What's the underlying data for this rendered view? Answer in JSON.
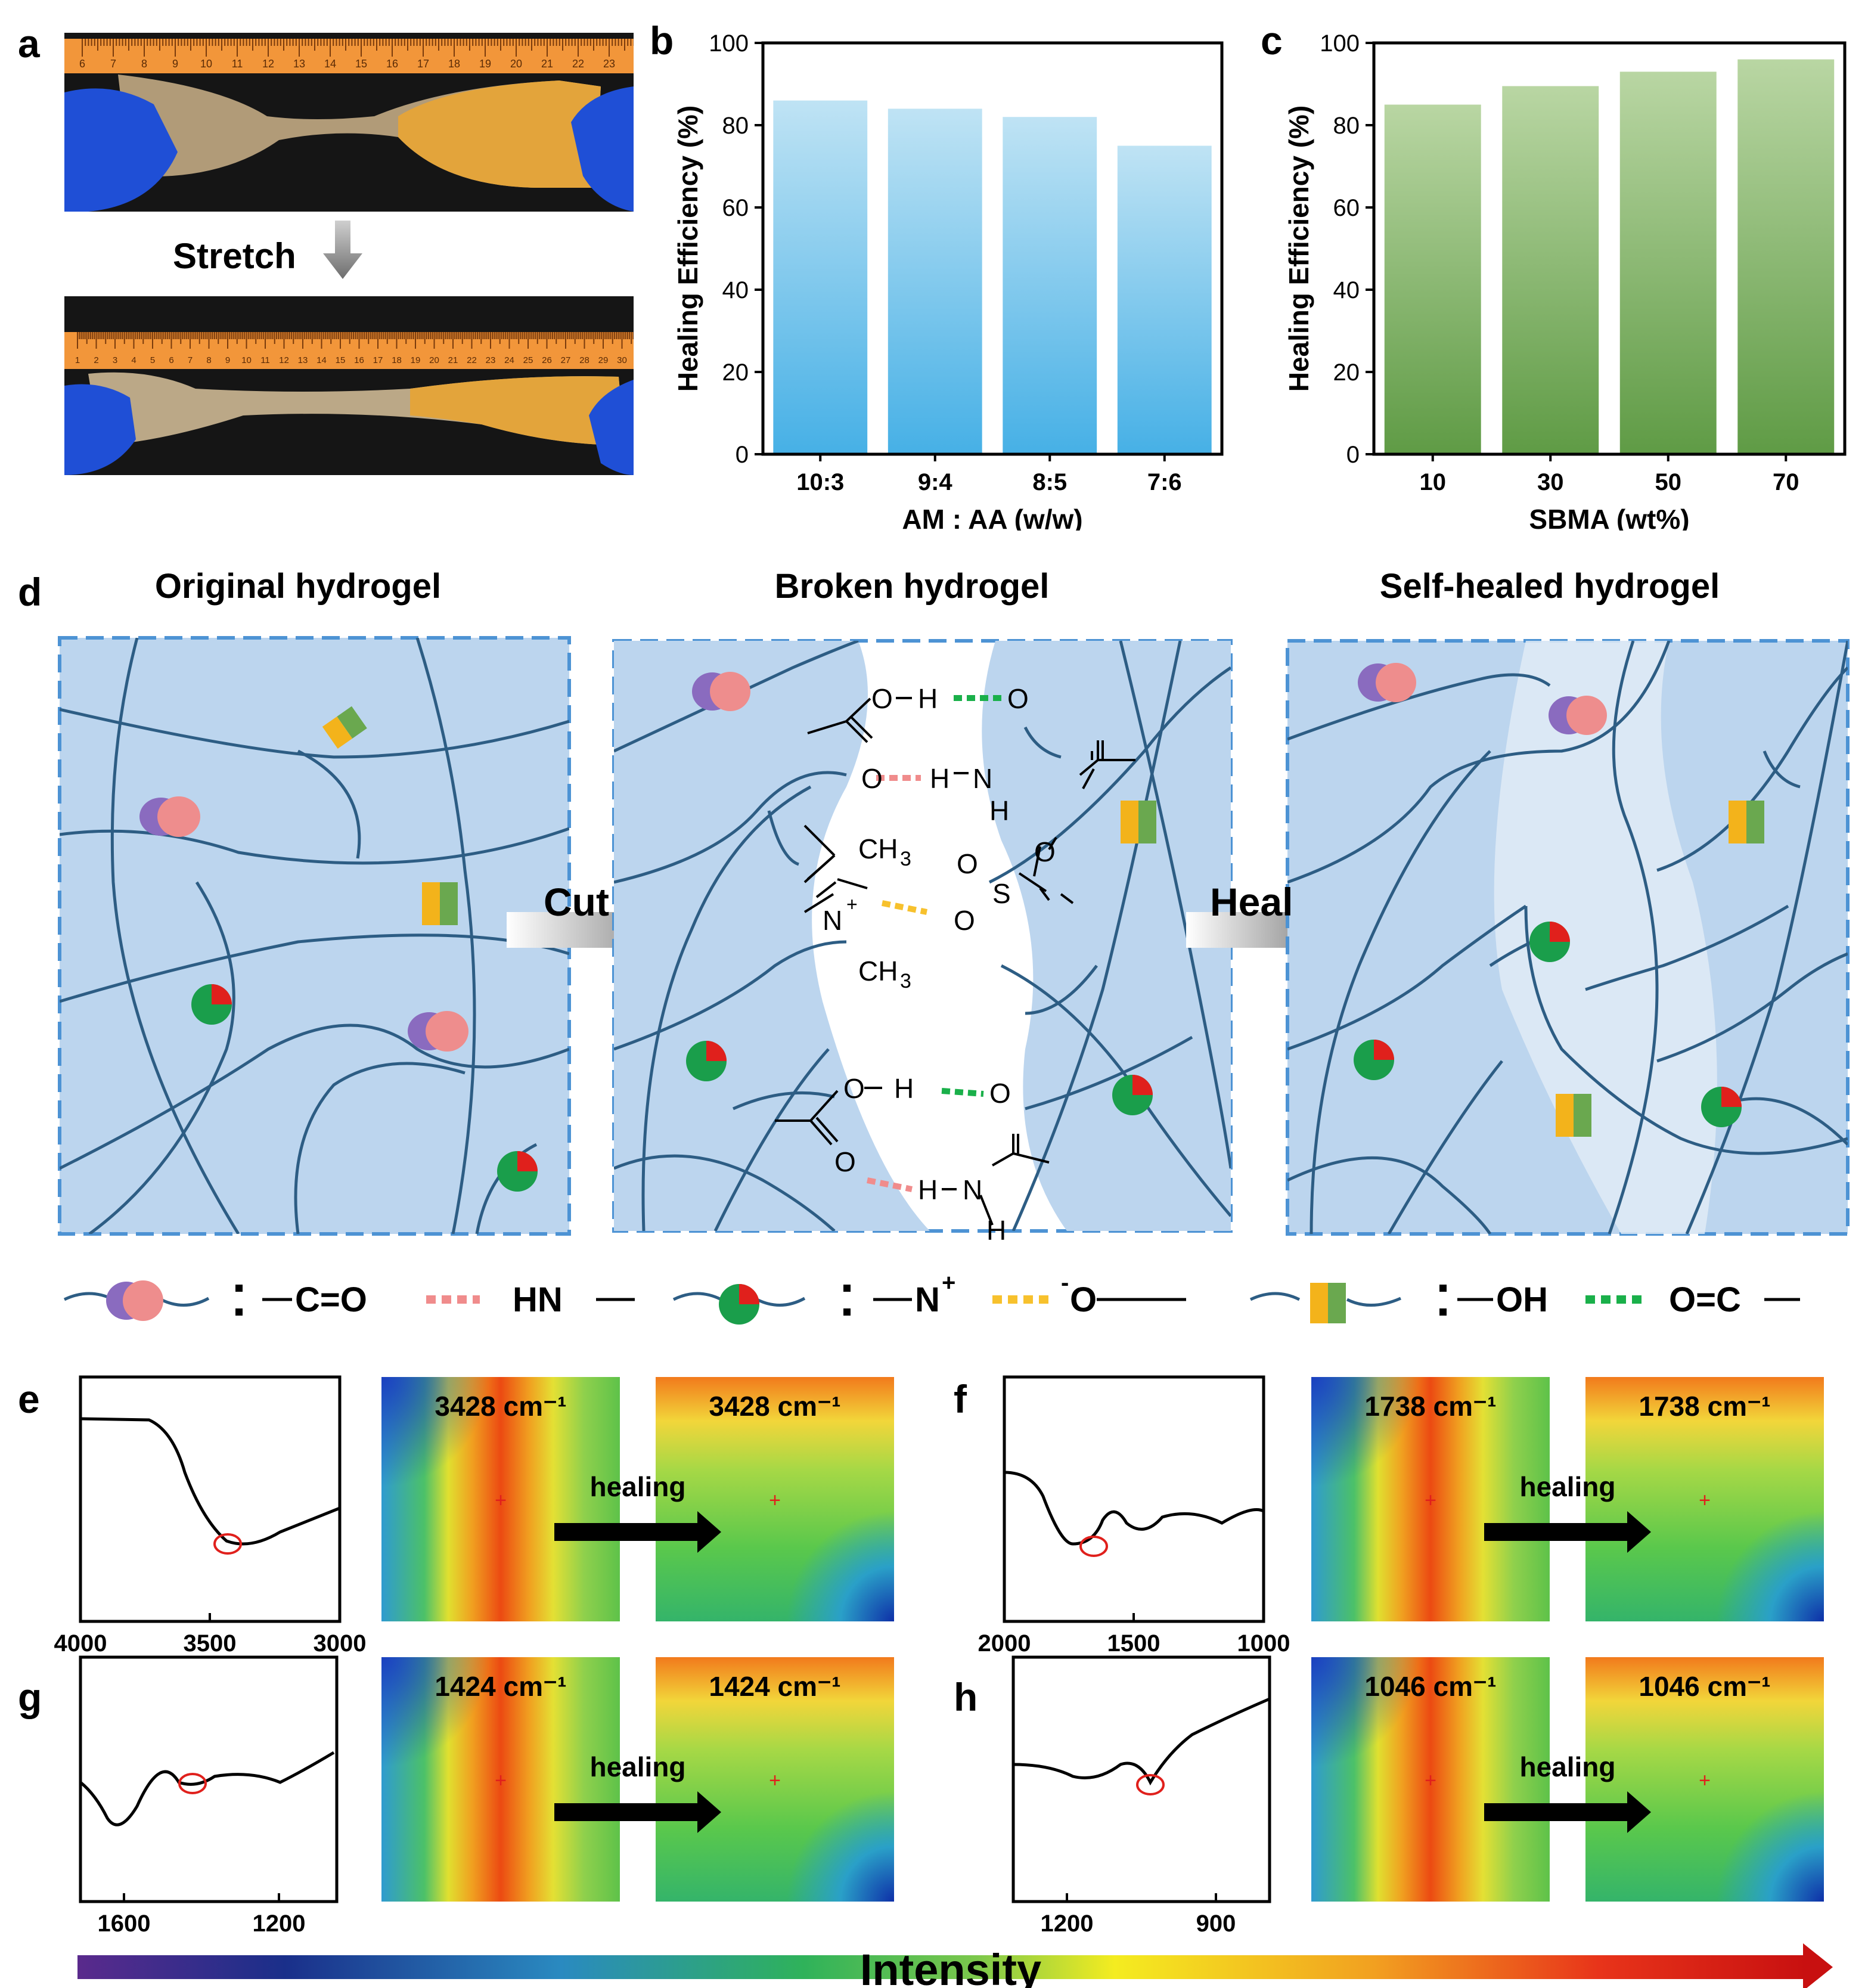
{
  "panels": {
    "a": {
      "label": "a",
      "stretch_label": "Stretch",
      "ruler_top": [
        "6",
        "7",
        "8",
        "9",
        "10",
        "11",
        "12",
        "13",
        "14",
        "15",
        "16",
        "17",
        "18",
        "19",
        "20",
        "21",
        "22",
        "23"
      ],
      "ruler_bottom": [
        "1",
        "2",
        "3",
        "4",
        "5",
        "6",
        "7",
        "8",
        "9",
        "10",
        "11",
        "12",
        "13",
        "14",
        "15",
        "16",
        "17",
        "18",
        "19",
        "20",
        "21",
        "22",
        "23",
        "24",
        "25",
        "26",
        "27",
        "28",
        "29",
        "30"
      ]
    },
    "b": {
      "label": "b"
    },
    "c": {
      "label": "c"
    },
    "d": {
      "label": "d",
      "titles": [
        "Original hydrogel",
        "Broken hydrogel",
        "Self-healed hydrogel"
      ],
      "cut_label": "Cut",
      "heal_label": "Heal",
      "chem": {
        "oh1": "O",
        "h1": "H",
        "o_right1": "O",
        "o_left2": "O",
        "h2": "H",
        "n2": "N",
        "h2b": "H",
        "ch3_top": "CH",
        "ch3_bot": "CH",
        "sub3": "3",
        "n_plus": "N",
        "plus": "+",
        "s": "S",
        "o_s1": "O",
        "o_s2": "O",
        "o_minus": "O"
      },
      "legend": [
        {
          "name": "hydrogen-bond-amide",
          "left": "C=O",
          "right": "HN",
          "dash_color": "#f08c8c"
        },
        {
          "name": "electrostatic",
          "left": "N",
          "left_sup": "+",
          "right": "O",
          "right_sup": "-",
          "dash_color": "#f7c12d"
        },
        {
          "name": "hydrogen-bond-hydroxyl",
          "left": "OH",
          "right": "O=C",
          "dash_color": "#1ab04a"
        }
      ]
    },
    "e": {
      "label": "e",
      "wavenumber": "3428 cm⁻¹",
      "arrow_label": "healing",
      "xticks": [
        "4000",
        "3500",
        "3000"
      ]
    },
    "f": {
      "label": "f",
      "wavenumber": "1738 cm⁻¹",
      "arrow_label": "healing",
      "xticks": [
        "2000",
        "1500",
        "1000"
      ]
    },
    "g": {
      "label": "g",
      "wavenumber": "1424 cm⁻¹",
      "arrow_label": "healing",
      "xticks": [
        "1600",
        "1200"
      ]
    },
    "h": {
      "label": "h",
      "wavenumber": "1046 cm⁻¹",
      "arrow_label": "healing",
      "xticks": [
        "1200",
        "900"
      ]
    }
  },
  "intensity_label": "Intensity",
  "colors": {
    "bar_b_top": "#bfe3f4",
    "bar_b_bottom": "#46b0e6",
    "bar_c_top": "#b9d6a3",
    "bar_c_bottom": "#5f9b45",
    "gel": "#bcd5ee",
    "gel_border": "#4d93d4",
    "chain": "#2d5d84"
  },
  "chart_data": [
    {
      "panel": "b",
      "type": "bar",
      "categories": [
        "10:3",
        "9:4",
        "8:5",
        "7:6"
      ],
      "values": [
        86,
        84,
        82,
        75
      ],
      "title": "",
      "xlabel": "AM : AA (w/w)",
      "ylabel": "Healing Efficiency (%)",
      "ylim": [
        0,
        100
      ],
      "yticks": [
        "0",
        "20",
        "40",
        "60",
        "80",
        "100"
      ]
    },
    {
      "panel": "c",
      "type": "bar",
      "categories": [
        "10",
        "30",
        "50",
        "70"
      ],
      "values": [
        85,
        89.5,
        93,
        96
      ],
      "title": "",
      "xlabel": "SBMA (wt%)",
      "ylabel": "Healing Efficiency (%)",
      "ylim": [
        0,
        100
      ],
      "yticks": [
        "0",
        "20",
        "40",
        "60",
        "80",
        "100"
      ]
    }
  ]
}
